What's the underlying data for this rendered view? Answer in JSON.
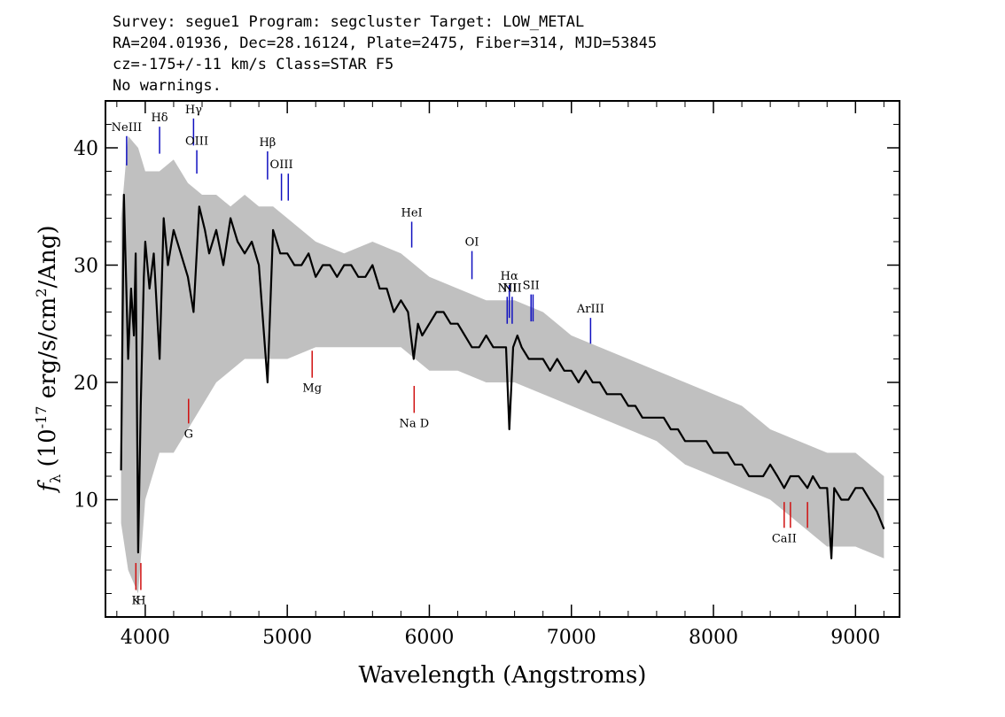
{
  "header": {
    "line1": "Survey: segue1 Program: segcluster Target: LOW_METAL",
    "line2": "RA=204.01936, Dec=28.16124, Plate=2475, Fiber=314, MJD=53845",
    "line3": "cz=-175+/-11 km/s Class=STAR F5",
    "line4": "No warnings."
  },
  "chart_data": {
    "type": "line",
    "xlabel": "Wavelength (Angstroms)",
    "ylabel": "f_λ (10^-17 erg/s/cm^2/Ang)",
    "xlim": [
      3720,
      9310
    ],
    "ylim": [
      0,
      44
    ],
    "xticks": [
      4000,
      5000,
      6000,
      7000,
      8000,
      9000
    ],
    "yticks": [
      10,
      20,
      30,
      40
    ],
    "series": [
      {
        "role": "error envelope",
        "color": "#c0c0c0",
        "x": [
          3830,
          3880,
          3950,
          4000,
          4100,
          4200,
          4300,
          4400,
          4500,
          4600,
          4700,
          4800,
          4900,
          5000,
          5200,
          5400,
          5600,
          5800,
          6000,
          6200,
          6400,
          6600,
          6800,
          7000,
          7200,
          7400,
          7600,
          7800,
          8000,
          8200,
          8400,
          8600,
          8800,
          9000,
          9200
        ],
        "upper": [
          34,
          41,
          40,
          38,
          38,
          39,
          37,
          36,
          36,
          35,
          36,
          35,
          35,
          34,
          32,
          31,
          32,
          31,
          29,
          28,
          27,
          27,
          26,
          24,
          23,
          22,
          21,
          20,
          19,
          18,
          16,
          15,
          14,
          14,
          12
        ],
        "lower": [
          8,
          4,
          2,
          10,
          14,
          14,
          16,
          18,
          20,
          21,
          22,
          22,
          22,
          22,
          23,
          23,
          23,
          23,
          21,
          21,
          20,
          20,
          19,
          18,
          17,
          16,
          15,
          13,
          12,
          11,
          10,
          8,
          6,
          6,
          5
        ]
      },
      {
        "role": "flux",
        "color": "#000000",
        "x": [
          3830,
          3850,
          3880,
          3900,
          3920,
          3933,
          3950,
          3968,
          3990,
          4000,
          4030,
          4060,
          4101,
          4130,
          4160,
          4200,
          4250,
          4300,
          4340,
          4380,
          4420,
          4450,
          4500,
          4550,
          4600,
          4650,
          4700,
          4750,
          4800,
          4861,
          4900,
          4950,
          5000,
          5050,
          5100,
          5150,
          5200,
          5250,
          5300,
          5350,
          5400,
          5450,
          5500,
          5550,
          5600,
          5650,
          5700,
          5750,
          5800,
          5850,
          5890,
          5920,
          5950,
          6000,
          6050,
          6100,
          6150,
          6200,
          6250,
          6300,
          6350,
          6400,
          6450,
          6500,
          6540,
          6563,
          6590,
          6620,
          6650,
          6700,
          6750,
          6800,
          6850,
          6900,
          6950,
          7000,
          7050,
          7100,
          7150,
          7200,
          7250,
          7300,
          7350,
          7400,
          7450,
          7500,
          7550,
          7600,
          7650,
          7700,
          7750,
          7800,
          7850,
          7900,
          7950,
          8000,
          8050,
          8100,
          8150,
          8200,
          8250,
          8300,
          8350,
          8400,
          8450,
          8498,
          8542,
          8600,
          8662,
          8700,
          8750,
          8800,
          8830,
          8850,
          8900,
          8950,
          9000,
          9050,
          9100,
          9150,
          9200
        ],
        "y": [
          12.5,
          36,
          22,
          28,
          24,
          31,
          5.5,
          18,
          29,
          32,
          28,
          31,
          22,
          34,
          30,
          33,
          31,
          29,
          26,
          35,
          33,
          31,
          33,
          30,
          34,
          32,
          31,
          32,
          30,
          20,
          33,
          31,
          31,
          30,
          30,
          31,
          29,
          30,
          30,
          29,
          30,
          30,
          29,
          29,
          30,
          28,
          28,
          26,
          27,
          26,
          22,
          25,
          24,
          25,
          26,
          26,
          25,
          25,
          24,
          23,
          23,
          24,
          23,
          23,
          23,
          16,
          23,
          24,
          23,
          22,
          22,
          22,
          21,
          22,
          21,
          21,
          20,
          21,
          20,
          20,
          19,
          19,
          19,
          18,
          18,
          17,
          17,
          17,
          17,
          16,
          16,
          15,
          15,
          15,
          15,
          14,
          14,
          14,
          13,
          13,
          12,
          12,
          12,
          13,
          12,
          11,
          12,
          12,
          11,
          12,
          11,
          11,
          5,
          11,
          10,
          10,
          11,
          11,
          10,
          9,
          7.5
        ]
      }
    ],
    "lines": [
      {
        "label": "NeIII",
        "x": 3869,
        "color": "#1010c0",
        "y1": 38.5,
        "y2": 41
      },
      {
        "label": "Hδ",
        "x": 4101,
        "color": "#1010c0",
        "y1": 39.5,
        "y2": 41.8
      },
      {
        "label": "Hγ",
        "x": 4340,
        "color": "#1010c0",
        "y1": 40.2,
        "y2": 42.5
      },
      {
        "label": "OIII",
        "x": 4363,
        "color": "#1010c0",
        "y1": 37.8,
        "y2": 39.8
      },
      {
        "label": "Hβ",
        "x": 4861,
        "color": "#1010c0",
        "y1": 37.3,
        "y2": 39.7
      },
      {
        "label": "OIII",
        "x": 4959,
        "color": "#1010c0",
        "y1": 35.5,
        "y2": 37.8
      },
      {
        "label": "",
        "x": 5007,
        "color": "#1010c0",
        "y1": 35.5,
        "y2": 37.8
      },
      {
        "label": "HeI",
        "x": 5876,
        "color": "#1010c0",
        "y1": 31.5,
        "y2": 33.7
      },
      {
        "label": "OI",
        "x": 6300,
        "color": "#1010c0",
        "y1": 28.8,
        "y2": 31.2
      },
      {
        "label": "NII",
        "x": 6548,
        "color": "#1010c0",
        "y1": 25,
        "y2": 27.3
      },
      {
        "label": "Hα",
        "x": 6563,
        "color": "#1010c0",
        "y1": 25.5,
        "y2": 28.3
      },
      {
        "label": "NII",
        "x": 6583,
        "color": "#1010c0",
        "y1": 25,
        "y2": 27.3
      },
      {
        "label": "SII",
        "x": 6716,
        "color": "#1010c0",
        "y1": 25.2,
        "y2": 27.5
      },
      {
        "label": "",
        "x": 6730,
        "color": "#1010c0",
        "y1": 25.2,
        "y2": 27.5
      },
      {
        "label": "ArIII",
        "x": 7135,
        "color": "#1010c0",
        "y1": 23.3,
        "y2": 25.5
      },
      {
        "label": "K",
        "x": 3934,
        "color": "#d01010",
        "y1": 2.3,
        "y2": 4.6
      },
      {
        "label": "H",
        "x": 3969,
        "color": "#d01010",
        "y1": 2.3,
        "y2": 4.6
      },
      {
        "label": "G",
        "x": 4305,
        "color": "#d01010",
        "y1": 16.5,
        "y2": 18.6
      },
      {
        "label": "Mg",
        "x": 5175,
        "color": "#d01010",
        "y1": 20.4,
        "y2": 22.7
      },
      {
        "label": "Na D",
        "x": 5893,
        "color": "#d01010",
        "y1": 17.4,
        "y2": 19.7
      },
      {
        "label": "CaII",
        "x": 8498,
        "color": "#d01010",
        "y1": 7.6,
        "y2": 9.8
      },
      {
        "label": "",
        "x": 8542,
        "color": "#d01010",
        "y1": 7.6,
        "y2": 9.8
      },
      {
        "label": "",
        "x": 8662,
        "color": "#d01010",
        "y1": 7.6,
        "y2": 9.8
      }
    ]
  }
}
